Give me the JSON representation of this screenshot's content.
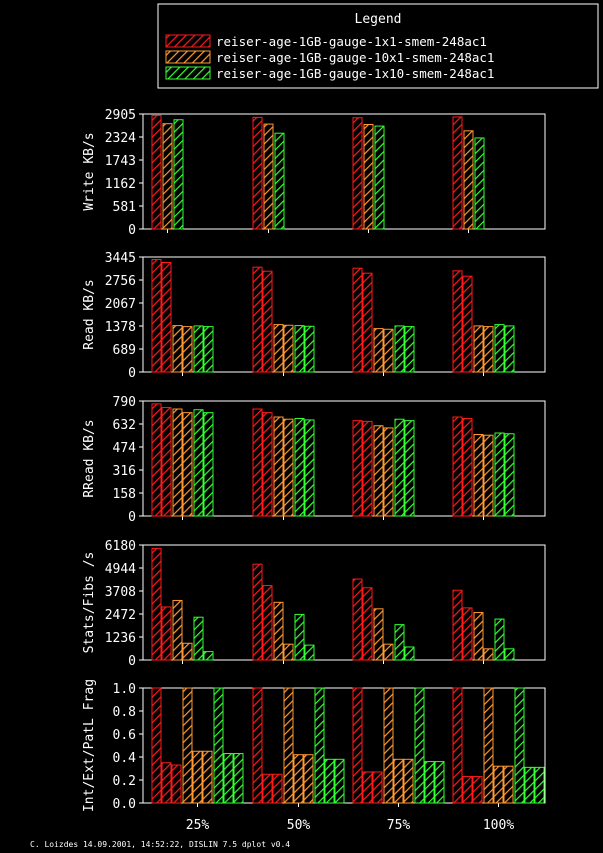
{
  "legend": {
    "title": "Legend",
    "entries": [
      {
        "name": "reiser-age-1GB-gauge-1x1-smem-248ac1",
        "color": "#ff1a1a"
      },
      {
        "name": "reiser-age-1GB-gauge-10x1-smem-248ac1",
        "color": "#ff9933"
      },
      {
        "name": "reiser-age-1GB-gauge-1x10-smem-248ac1",
        "color": "#33ff33"
      }
    ]
  },
  "footer": "C. Loizdes 14.09.2001, 14:52:22, DISLIN 7.5 dplot v0.4",
  "chart_data": [
    {
      "type": "bar",
      "ylabel": "Write KB/s",
      "ylim": [
        0,
        2905
      ],
      "ticks": [
        "0",
        "581",
        "1162",
        "1743",
        "2324",
        "2905"
      ],
      "categories": [
        "25%",
        "50%",
        "75%",
        "100%"
      ],
      "series": [
        {
          "name": "reiser-age-1GB-gauge-1x1-smem-248ac1",
          "values": [
            [
              2870
            ],
            [
              2820
            ],
            [
              2810
            ],
            [
              2830
            ]
          ]
        },
        {
          "name": "reiser-age-1GB-gauge-10x1-smem-248ac1",
          "values": [
            [
              2660
            ],
            [
              2650
            ],
            [
              2640
            ],
            [
              2480
            ]
          ]
        },
        {
          "name": "reiser-age-1GB-gauge-1x10-smem-248ac1",
          "values": [
            [
              2760
            ],
            [
              2420
            ],
            [
              2600
            ],
            [
              2300
            ]
          ]
        }
      ]
    },
    {
      "type": "bar",
      "ylabel": "Read KB/s",
      "ylim": [
        0,
        3445
      ],
      "ticks": [
        "0",
        "689",
        "1378",
        "2067",
        "2756",
        "3445"
      ],
      "categories": [
        "25%",
        "50%",
        "75%",
        "100%"
      ],
      "series": [
        {
          "name": "reiser-age-1GB-gauge-1x1-smem-248ac1",
          "values": [
            [
              3370,
              3280
            ],
            [
              3140,
              3020
            ],
            [
              3110,
              2960
            ],
            [
              3030,
              2870
            ]
          ]
        },
        {
          "name": "reiser-age-1GB-gauge-10x1-smem-248ac1",
          "values": [
            [
              1390,
              1360
            ],
            [
              1420,
              1400
            ],
            [
              1300,
              1280
            ],
            [
              1380,
              1360
            ]
          ]
        },
        {
          "name": "reiser-age-1GB-gauge-1x10-smem-248ac1",
          "values": [
            [
              1380,
              1360
            ],
            [
              1390,
              1370
            ],
            [
              1380,
              1360
            ],
            [
              1420,
              1380
            ]
          ]
        }
      ]
    },
    {
      "type": "bar",
      "ylabel": "RRead KB/s",
      "ylim": [
        0,
        790
      ],
      "ticks": [
        "0",
        "158",
        "316",
        "474",
        "632",
        "790"
      ],
      "categories": [
        "25%",
        "50%",
        "75%",
        "100%"
      ],
      "series": [
        {
          "name": "reiser-age-1GB-gauge-1x1-smem-248ac1",
          "values": [
            [
              770,
              745
            ],
            [
              735,
              710
            ],
            [
              655,
              650
            ],
            [
              680,
              670
            ]
          ]
        },
        {
          "name": "reiser-age-1GB-gauge-10x1-smem-248ac1",
          "values": [
            [
              735,
              710
            ],
            [
              680,
              665
            ],
            [
              620,
              605
            ],
            [
              560,
              555
            ]
          ]
        },
        {
          "name": "reiser-age-1GB-gauge-1x10-smem-248ac1",
          "values": [
            [
              730,
              710
            ],
            [
              670,
              660
            ],
            [
              665,
              655
            ],
            [
              570,
              565
            ]
          ]
        }
      ]
    },
    {
      "type": "bar",
      "ylabel": "Stats/Fibs /s",
      "ylim": [
        0,
        6180
      ],
      "ticks": [
        "0",
        "1236",
        "2472",
        "3708",
        "4944",
        "6180"
      ],
      "categories": [
        "25%",
        "50%",
        "75%",
        "100%"
      ],
      "series": [
        {
          "name": "reiser-age-1GB-gauge-1x1-smem-248ac1",
          "values": [
            [
              6000,
              2850
            ],
            [
              5150,
              4000
            ],
            [
              4350,
              3880
            ],
            [
              3750,
              2800
            ]
          ]
        },
        {
          "name": "reiser-age-1GB-gauge-10x1-smem-248ac1",
          "values": [
            [
              3200,
              900
            ],
            [
              3100,
              850
            ],
            [
              2750,
              850
            ],
            [
              2550,
              600
            ]
          ]
        },
        {
          "name": "reiser-age-1GB-gauge-1x10-smem-248ac1",
          "values": [
            [
              2300,
              450
            ],
            [
              2450,
              800
            ],
            [
              1900,
              700
            ],
            [
              2200,
              600
            ]
          ]
        }
      ]
    },
    {
      "type": "bar",
      "ylabel": "Int/Ext/PatL Frag",
      "ylim": [
        0,
        1.0
      ],
      "ticks": [
        "0.0",
        "0.2",
        "0.4",
        "0.6",
        "0.8",
        "1.0"
      ],
      "categories": [
        "25%",
        "50%",
        "75%",
        "100%"
      ],
      "series": [
        {
          "name": "reiser-age-1GB-gauge-1x1-smem-248ac1",
          "values": [
            [
              1.0,
              0.35,
              0.33
            ],
            [
              1.0,
              0.25,
              0.25
            ],
            [
              1.0,
              0.27,
              0.27
            ],
            [
              1.0,
              0.23,
              0.23
            ]
          ]
        },
        {
          "name": "reiser-age-1GB-gauge-10x1-smem-248ac1",
          "values": [
            [
              1.0,
              0.45,
              0.45
            ],
            [
              1.0,
              0.42,
              0.42
            ],
            [
              1.0,
              0.38,
              0.38
            ],
            [
              1.0,
              0.32,
              0.32
            ]
          ]
        },
        {
          "name": "reiser-age-1GB-gauge-1x10-smem-248ac1",
          "values": [
            [
              1.0,
              0.43,
              0.43
            ],
            [
              1.0,
              0.38,
              0.38
            ],
            [
              1.0,
              0.36,
              0.36
            ],
            [
              1.0,
              0.31,
              0.31
            ]
          ]
        }
      ]
    }
  ]
}
